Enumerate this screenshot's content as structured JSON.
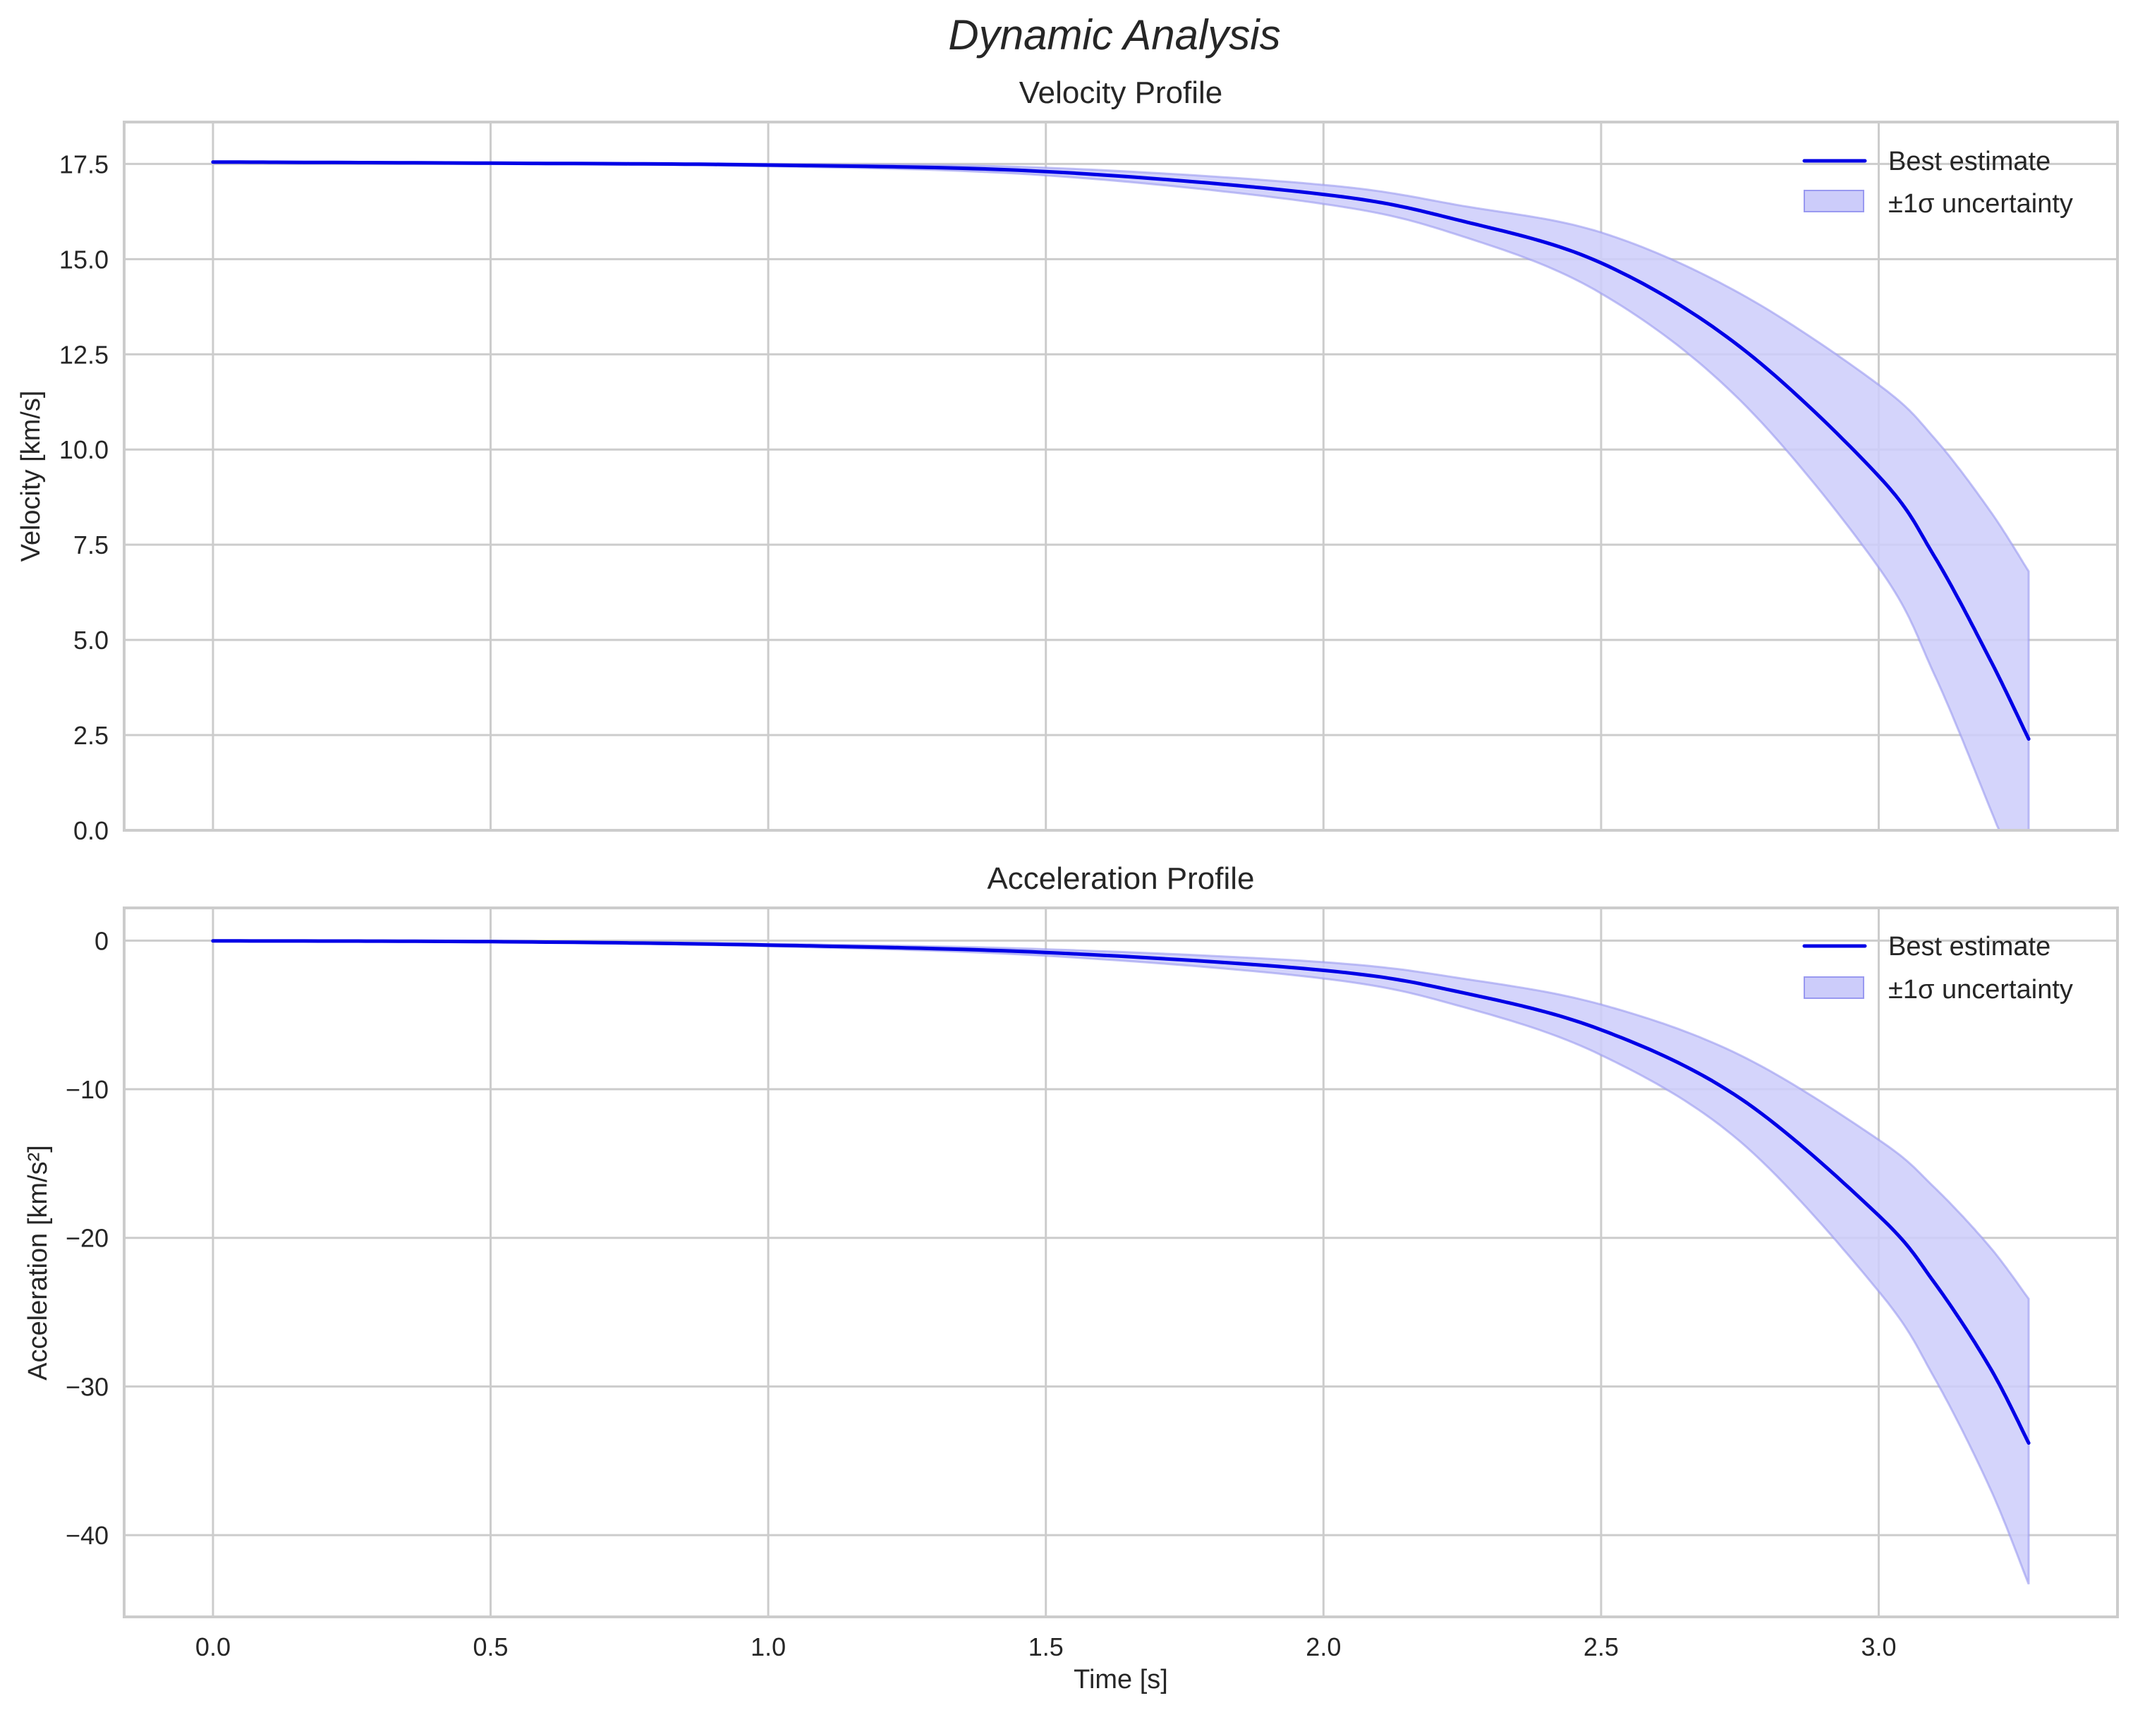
{
  "figure": {
    "suptitle": "Dynamic Analysis",
    "xlabel": "Time [s]",
    "colors": {
      "line": "#0000e6",
      "band_fill": "#ccccfa",
      "band_edge": "#9999f0",
      "grid": "#cccccc",
      "spine": "#cccccc",
      "text": "#262626"
    }
  },
  "chart_data": [
    {
      "type": "line",
      "title": "Velocity Profile",
      "xlabel": "",
      "ylabel": "Velocity [km/s]",
      "xlim": [
        -0.16,
        3.43
      ],
      "ylim": [
        0.0,
        18.6
      ],
      "xticks": [
        "0.0",
        "0.5",
        "1.0",
        "1.5",
        "2.0",
        "2.5",
        "3.0"
      ],
      "yticks": [
        "0.0",
        "2.5",
        "5.0",
        "7.5",
        "10.0",
        "12.5",
        "15.0",
        "17.5"
      ],
      "grid": true,
      "legend": {
        "position": "upper right",
        "entries": [
          "Best estimate",
          "±1σ uncertainty"
        ]
      },
      "x": [
        0.0,
        0.5,
        1.0,
        1.5,
        2.0,
        2.25,
        2.5,
        2.75,
        3.0,
        3.1,
        3.2,
        3.27
      ],
      "series": [
        {
          "name": "Best estimate",
          "values": [
            17.55,
            17.52,
            17.47,
            17.3,
            16.7,
            16.0,
            14.9,
            12.7,
            9.3,
            7.2,
            4.5,
            2.4
          ]
        },
        {
          "name": "±1σ upper",
          "values": [
            17.56,
            17.54,
            17.5,
            17.4,
            16.95,
            16.4,
            15.7,
            14.1,
            11.7,
            10.3,
            8.4,
            6.8
          ]
        },
        {
          "name": "±1σ lower",
          "values": [
            17.54,
            17.5,
            17.44,
            17.2,
            16.45,
            15.6,
            14.1,
            11.3,
            6.9,
            4.1,
            0.6,
            -2.0
          ]
        }
      ]
    },
    {
      "type": "line",
      "title": "Acceleration Profile",
      "xlabel": "Time [s]",
      "ylabel": "Acceleration [km/s²]",
      "xlim": [
        -0.16,
        3.43
      ],
      "ylim": [
        -45.5,
        2.2
      ],
      "xticks": [
        "0.0",
        "0.5",
        "1.0",
        "1.5",
        "2.0",
        "2.5",
        "3.0"
      ],
      "yticks": [
        "0",
        "−10",
        "−20",
        "−30",
        "−40"
      ],
      "grid": true,
      "legend": {
        "position": "upper right",
        "entries": [
          "Best estimate",
          "±1σ uncertainty"
        ]
      },
      "x": [
        0.0,
        0.5,
        1.0,
        1.5,
        2.0,
        2.25,
        2.5,
        2.75,
        3.0,
        3.1,
        3.2,
        3.27
      ],
      "series": [
        {
          "name": "Best estimate",
          "values": [
            -0.02,
            -0.07,
            -0.3,
            -0.8,
            -2.0,
            -3.5,
            -6.0,
            -10.6,
            -18.5,
            -23.0,
            -28.7,
            -33.8
          ]
        },
        {
          "name": "±1σ upper",
          "values": [
            -0.02,
            -0.05,
            -0.22,
            -0.58,
            -1.45,
            -2.55,
            -4.3,
            -7.7,
            -13.4,
            -16.6,
            -20.6,
            -24.1
          ]
        },
        {
          "name": "±1σ lower",
          "values": [
            -0.02,
            -0.09,
            -0.38,
            -1.02,
            -2.55,
            -4.45,
            -7.7,
            -13.5,
            -23.6,
            -29.4,
            -36.8,
            -43.3
          ]
        }
      ]
    }
  ]
}
